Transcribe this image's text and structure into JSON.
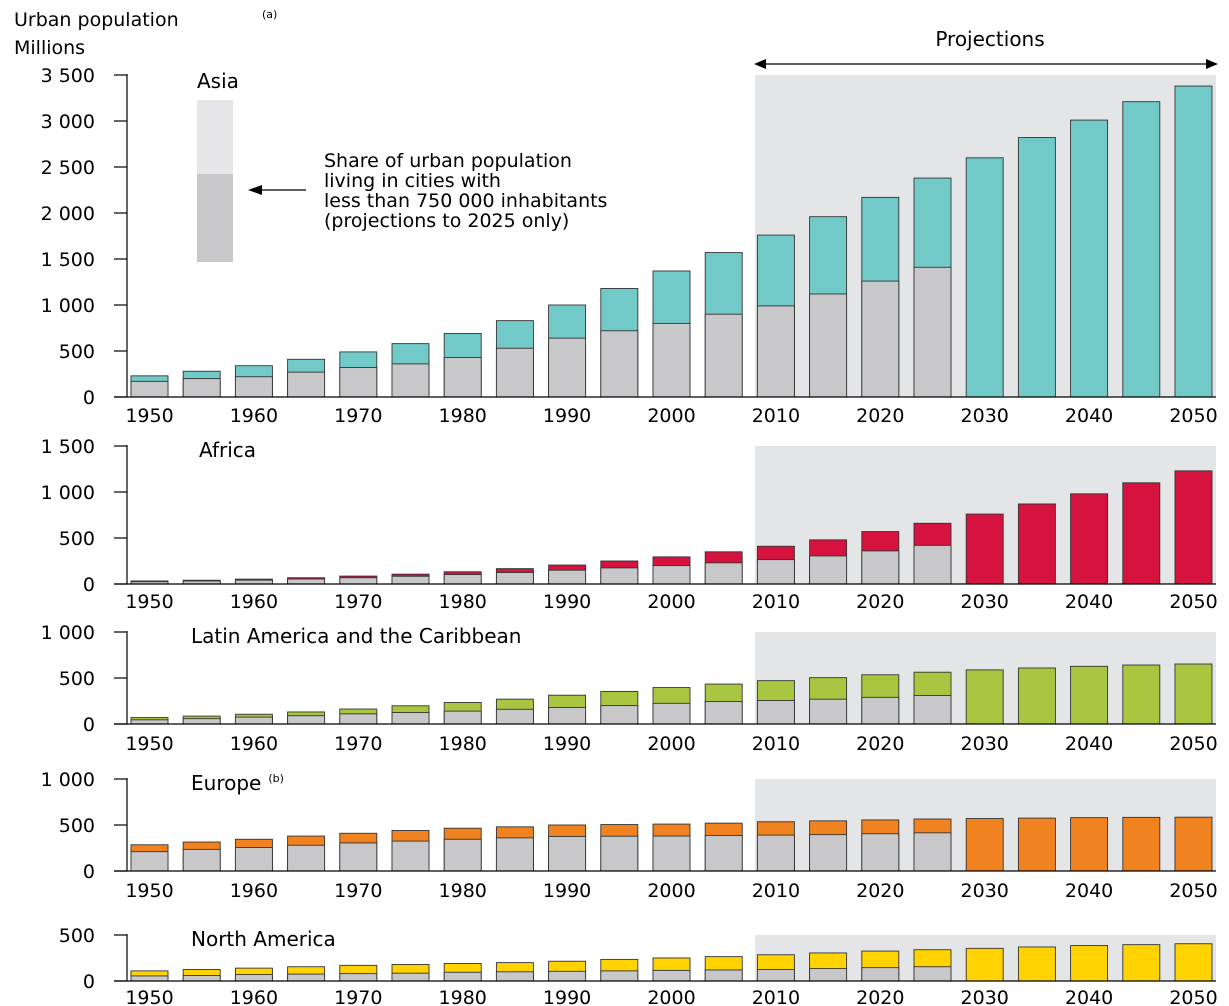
{
  "figure": {
    "ylabel_line1": "Urban population",
    "ylabel_sup": "(a)",
    "ylabel_line2": "Millions",
    "projections_label": "Projections",
    "legend_text": [
      "Share of urban population",
      "living in cities with",
      "less than 750 000 inhabitants",
      "(projections to 2025 only)"
    ]
  },
  "colors": {
    "asia": "#72CAC8",
    "africa": "#D6123F",
    "latin": "#A8C640",
    "europe": "#F08220",
    "north_america": "#FFD200",
    "small_cities": "#C8C8CA",
    "projection_bg": "#E4E5E7",
    "legend_light": "#E6E6E8"
  },
  "chart_data": [
    {
      "type": "bar",
      "title": "Asia",
      "title_sup": "",
      "color_key": "asia",
      "x": [
        1950,
        1955,
        1960,
        1965,
        1970,
        1975,
        1980,
        1985,
        1990,
        1995,
        2000,
        2005,
        2010,
        2015,
        2020,
        2025,
        2030,
        2035,
        2040,
        2045,
        2050
      ],
      "x_tick_labels": [
        "1950",
        "1960",
        "1970",
        "1980",
        "1990",
        "2000",
        "2010",
        "2020",
        "2030",
        "2040",
        "2050"
      ],
      "ylim": [
        0,
        3500
      ],
      "y_ticks": [
        0,
        500,
        1000,
        1500,
        2000,
        2500,
        3000,
        3500
      ],
      "y_tick_labels": [
        "0",
        "500",
        "1 000",
        "1 500",
        "2 000",
        "2 500",
        "3 000",
        "3 500"
      ],
      "series": [
        {
          "name": "Urban population",
          "values": [
            230,
            280,
            340,
            410,
            490,
            580,
            690,
            830,
            1000,
            1180,
            1370,
            1570,
            1760,
            1960,
            2170,
            2380,
            2600,
            2820,
            3010,
            3210,
            3380
          ]
        },
        {
          "name": "Share of urban population living in cities with less than 750 000 inhabitants",
          "values": [
            170,
            200,
            220,
            270,
            320,
            360,
            430,
            530,
            640,
            720,
            800,
            900,
            990,
            1120,
            1260,
            1410,
            null,
            null,
            null,
            null,
            null
          ]
        }
      ]
    },
    {
      "type": "bar",
      "title": "Africa",
      "title_sup": "",
      "color_key": "africa",
      "x": [
        1950,
        1955,
        1960,
        1965,
        1970,
        1975,
        1980,
        1985,
        1990,
        1995,
        2000,
        2005,
        2010,
        2015,
        2020,
        2025,
        2030,
        2035,
        2040,
        2045,
        2050
      ],
      "x_tick_labels": [
        "1950",
        "1960",
        "1970",
        "1980",
        "1990",
        "2000",
        "2010",
        "2020",
        "2030",
        "2040",
        "2050"
      ],
      "ylim": [
        0,
        1500
      ],
      "y_ticks": [
        0,
        500,
        1000,
        1500
      ],
      "y_tick_labels": [
        "0",
        "500",
        "1 000",
        "1 500"
      ],
      "series": [
        {
          "name": "Urban population",
          "values": [
            33,
            41,
            53,
            68,
            86,
            107,
            133,
            167,
            206,
            250,
            295,
            350,
            410,
            480,
            570,
            660,
            760,
            870,
            980,
            1100,
            1230
          ]
        },
        {
          "name": "Share of urban population living in cities with less than 750 000 inhabitants",
          "values": [
            25,
            33,
            42,
            54,
            68,
            84,
            103,
            125,
            150,
            175,
            200,
            230,
            265,
            305,
            360,
            420,
            null,
            null,
            null,
            null,
            null
          ]
        }
      ]
    },
    {
      "type": "bar",
      "title": "Latin America and the Caribbean",
      "title_sup": "",
      "color_key": "latin",
      "x": [
        1950,
        1955,
        1960,
        1965,
        1970,
        1975,
        1980,
        1985,
        1990,
        1995,
        2000,
        2005,
        2010,
        2015,
        2020,
        2025,
        2030,
        2035,
        2040,
        2045,
        2050
      ],
      "x_tick_labels": [
        "1950",
        "1960",
        "1970",
        "1980",
        "1990",
        "2000",
        "2010",
        "2020",
        "2030",
        "2040",
        "2050"
      ],
      "ylim": [
        0,
        1000
      ],
      "y_ticks": [
        0,
        500,
        1000
      ],
      "y_tick_labels": [
        "0",
        "500",
        "1 000"
      ],
      "series": [
        {
          "name": "Urban population",
          "values": [
            70,
            86,
            106,
            131,
            163,
            198,
            234,
            270,
            313,
            354,
            396,
            434,
            471,
            504,
            535,
            563,
            588,
            609,
            627,
            641,
            652
          ]
        },
        {
          "name": "Share of urban population living in cities with less than 750 000 inhabitants",
          "values": [
            45,
            58,
            75,
            90,
            110,
            125,
            140,
            160,
            180,
            200,
            225,
            245,
            255,
            270,
            290,
            310,
            null,
            null,
            null,
            null,
            null
          ]
        }
      ]
    },
    {
      "type": "bar",
      "title": "Europe",
      "title_sup": "(b)",
      "color_key": "europe",
      "x": [
        1950,
        1955,
        1960,
        1965,
        1970,
        1975,
        1980,
        1985,
        1990,
        1995,
        2000,
        2005,
        2010,
        2015,
        2020,
        2025,
        2030,
        2035,
        2040,
        2045,
        2050
      ],
      "x_tick_labels": [
        "1950",
        "1960",
        "1970",
        "1980",
        "1990",
        "2000",
        "2010",
        "2020",
        "2030",
        "2040",
        "2050"
      ],
      "ylim": [
        0,
        1000
      ],
      "y_ticks": [
        0,
        500,
        1000
      ],
      "y_tick_labels": [
        "0",
        "500",
        "1 000"
      ],
      "series": [
        {
          "name": "Urban population",
          "values": [
            285,
            315,
            345,
            380,
            410,
            440,
            465,
            480,
            500,
            505,
            510,
            520,
            535,
            545,
            555,
            565,
            570,
            575,
            580,
            583,
            585
          ]
        },
        {
          "name": "Share of urban population living in cities with less than 750 000 inhabitants",
          "values": [
            210,
            235,
            255,
            280,
            305,
            325,
            345,
            360,
            375,
            378,
            380,
            385,
            390,
            395,
            405,
            415,
            null,
            null,
            null,
            null,
            null
          ]
        }
      ]
    },
    {
      "type": "bar",
      "title": "North America",
      "title_sup": "",
      "color_key": "north_america",
      "x": [
        1950,
        1955,
        1960,
        1965,
        1970,
        1975,
        1980,
        1985,
        1990,
        1995,
        2000,
        2005,
        2010,
        2015,
        2020,
        2025,
        2030,
        2035,
        2040,
        2045,
        2050
      ],
      "x_tick_labels": [
        "1950",
        "1960",
        "1970",
        "1980",
        "1990",
        "2000",
        "2010",
        "2020",
        "2030",
        "2040",
        "2050"
      ],
      "ylim": [
        0,
        500
      ],
      "y_ticks": [
        0,
        500
      ],
      "y_tick_labels": [
        "0",
        "500"
      ],
      "series": [
        {
          "name": "Urban population",
          "values": [
            110,
            125,
            140,
            155,
            170,
            180,
            190,
            200,
            215,
            235,
            250,
            265,
            285,
            305,
            325,
            340,
            355,
            370,
            385,
            395,
            405
          ]
        },
        {
          "name": "Share of urban population living in cities with less than 750 000 inhabitants",
          "values": [
            55,
            60,
            70,
            75,
            80,
            85,
            95,
            100,
            105,
            110,
            115,
            120,
            125,
            135,
            145,
            155,
            null,
            null,
            null,
            null,
            null
          ]
        }
      ]
    }
  ]
}
